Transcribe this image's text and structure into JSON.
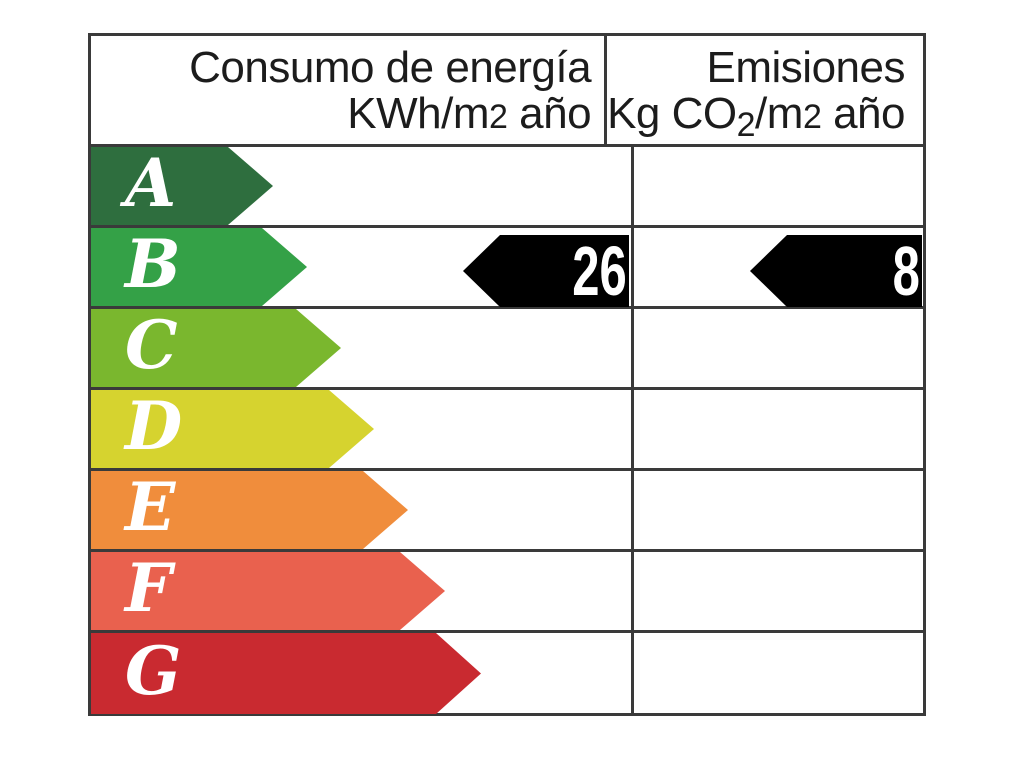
{
  "page": {
    "background": "#ffffff",
    "border_color": "#3a3a3a"
  },
  "header": {
    "consumo": {
      "line1": "Consumo de energía",
      "line2_main": "KWh/m",
      "line2_small": "2",
      "line2_tail": " año"
    },
    "emisiones": {
      "line1": "Emisiones",
      "line2_main": "Kg CO",
      "line2_sub": "2",
      "line2_mid": "/m",
      "line2_small": "2",
      "line2_tail": " año"
    }
  },
  "ratings": [
    {
      "letter": "A",
      "color": "#2e6e3e"
    },
    {
      "letter": "B",
      "color": "#34a147"
    },
    {
      "letter": "C",
      "color": "#7ab72e"
    },
    {
      "letter": "D",
      "color": "#d6d32f"
    },
    {
      "letter": "E",
      "color": "#f08d3c"
    },
    {
      "letter": "F",
      "color": "#e9614e"
    },
    {
      "letter": "G",
      "color": "#c92a30"
    }
  ],
  "indicators": {
    "consumption": {
      "value": "26",
      "rating_row": "B",
      "arrow_color": "#000000",
      "text_color": "#ffffff"
    },
    "emissions": {
      "value": "8",
      "rating_row": "B",
      "arrow_color": "#000000",
      "text_color": "#ffffff"
    }
  },
  "chart_data": {
    "type": "bar",
    "subtype": "energy-rating-label",
    "orientation": "horizontal",
    "categories": [
      "A",
      "B",
      "C",
      "D",
      "E",
      "F",
      "G"
    ],
    "bar_colors": [
      "#2e6e3e",
      "#34a147",
      "#7ab72e",
      "#d6d32f",
      "#f08d3c",
      "#e9614e",
      "#c92a30"
    ],
    "bar_relative_lengths": [
      182,
      216,
      250,
      283,
      317,
      354,
      390
    ],
    "columns": [
      {
        "label": "Consumo de energía KWh/m2 año",
        "value": 26,
        "rating": "B"
      },
      {
        "label": "Emisiones Kg CO2/m2 año",
        "value": 8,
        "rating": "B"
      }
    ],
    "legend_position": "none",
    "grid": false
  }
}
